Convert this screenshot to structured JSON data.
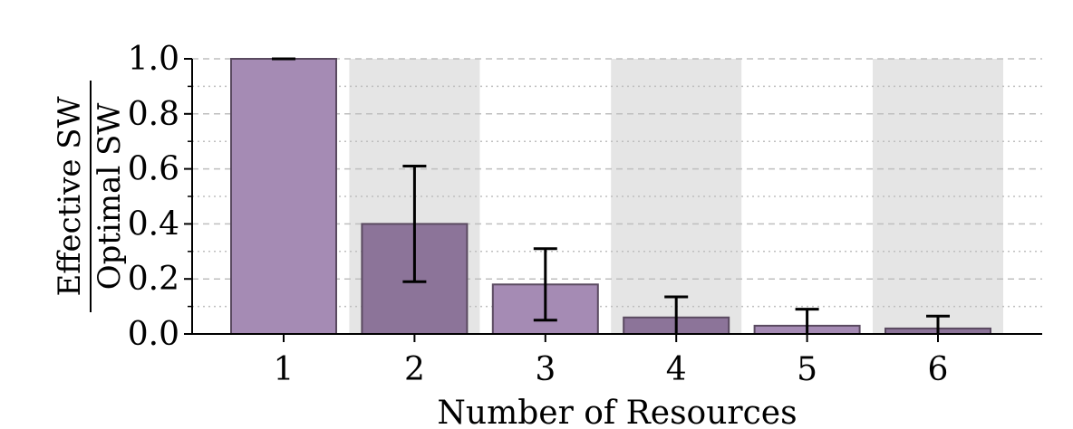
{
  "chart_data": {
    "type": "bar",
    "categories": [
      "1",
      "2",
      "3",
      "4",
      "5",
      "6"
    ],
    "values": [
      1.0,
      0.4,
      0.18,
      0.06,
      0.03,
      0.02
    ],
    "error_low": [
      1.0,
      0.19,
      0.05,
      0.0,
      0.0,
      0.0
    ],
    "error_high": [
      1.0,
      0.61,
      0.31,
      0.135,
      0.09,
      0.065
    ],
    "xlabel": "Number of Resources",
    "ylabel_numerator": "Effective SW",
    "ylabel_denominator": "Optimal SW",
    "ylim": [
      0,
      1.0
    ],
    "yticks": [
      "0.0",
      "0.2",
      "0.4",
      "0.6",
      "0.8",
      "1.0"
    ],
    "grid": "horizontal dashed and dotted",
    "shaded_categories": [
      "2",
      "4",
      "6"
    ],
    "colors": {
      "bar_light": "#a58bb4",
      "bar_dark": "#8c7499",
      "bar_edge": "#5a4a60",
      "shade": "#e5e5e5",
      "grid": "#bfbfbf",
      "error": "#000000"
    }
  }
}
